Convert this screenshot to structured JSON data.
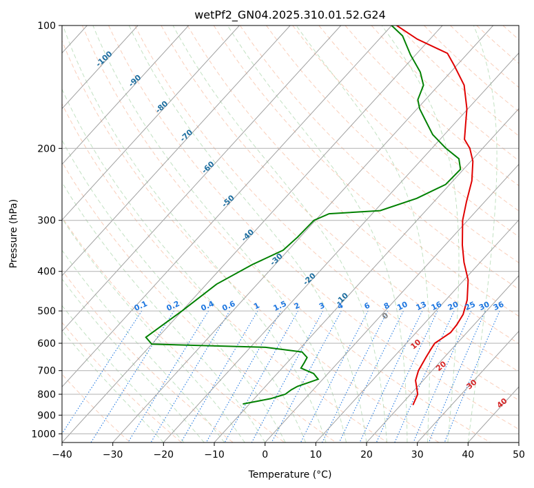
{
  "chart_data": {
    "type": "line",
    "title": "wetPf2_GN04.2025.310.01.52.G24",
    "xlabel": "Temperature (°C)",
    "ylabel": "Pressure (hPa)",
    "xlim": [
      -40,
      50
    ],
    "ylim": [
      1050,
      100
    ],
    "y_scale": "log",
    "grid": true,
    "x_ticks": [
      "−40",
      "−30",
      "−20",
      "−10",
      "0",
      "10",
      "20",
      "30",
      "40",
      "50"
    ],
    "y_ticks": [
      "100",
      "200",
      "300",
      "400",
      "500",
      "600",
      "700",
      "800",
      "900",
      "1000"
    ],
    "colors": {
      "temperature": "#e00000",
      "dewpoint": "#008000",
      "isotherm": "#a0a0a0",
      "dry_adiabat": "#f4a582",
      "moist_adiabat": "#8fc98f",
      "mixing_ratio": "#1f77e0",
      "isotherm_label": "#1f6fa0"
    },
    "isotherm_labels": [
      {
        "text": "-100",
        "p": 122
      },
      {
        "text": "-90",
        "p": 138
      },
      {
        "text": "-80",
        "p": 160
      },
      {
        "text": "-70",
        "p": 188
      },
      {
        "text": "-60",
        "p": 225
      },
      {
        "text": "-50",
        "p": 272
      },
      {
        "text": "-40",
        "p": 330
      },
      {
        "text": "-30",
        "p": 378
      },
      {
        "text": "-20",
        "p": 422
      },
      {
        "text": "-10",
        "p": 472
      }
    ],
    "mixing_ratio_labels": [
      "0.1",
      "0.2",
      "0.4",
      "0.6",
      "1",
      "1.5",
      "2",
      "3",
      "4",
      "6",
      "8",
      "10",
      "13",
      "16",
      "20",
      "25",
      "30",
      "36"
    ],
    "dry_adiabat_labels": [
      "0",
      "10",
      "20",
      "30",
      "40"
    ],
    "series": [
      {
        "name": "Temperature",
        "points": [
          [
            22.4,
            850
          ],
          [
            21.4,
            800
          ],
          [
            19.5,
            760
          ],
          [
            18.5,
            740
          ],
          [
            17.3,
            700
          ],
          [
            16.4,
            650
          ],
          [
            15.9,
            620
          ],
          [
            15.6,
            600
          ],
          [
            16.8,
            565
          ],
          [
            16.6,
            540
          ],
          [
            16.0,
            510
          ],
          [
            14.2,
            470
          ],
          [
            10.8,
            420
          ],
          [
            6.8,
            380
          ],
          [
            3.4,
            345
          ],
          [
            -1.0,
            300
          ],
          [
            -3.6,
            270
          ],
          [
            -6.3,
            240
          ],
          [
            -9.6,
            215
          ],
          [
            -12.5,
            200
          ],
          [
            -15.2,
            190
          ],
          [
            -17.6,
            175
          ],
          [
            -20.2,
            160
          ],
          [
            -25.0,
            140
          ],
          [
            -30.6,
            125
          ],
          [
            -34.0,
            117
          ],
          [
            -42.5,
            108
          ],
          [
            -49.0,
            100
          ]
        ]
      },
      {
        "name": "Dewpoint",
        "points": [
          [
            -11.3,
            845
          ],
          [
            -6.8,
            820
          ],
          [
            -4.7,
            800
          ],
          [
            -4.3,
            780
          ],
          [
            -3.7,
            765
          ],
          [
            -0.9,
            735
          ],
          [
            -2.8,
            712
          ],
          [
            -6.3,
            690
          ],
          [
            -6.6,
            670
          ],
          [
            -7.0,
            650
          ],
          [
            -9.0,
            630
          ],
          [
            -17.0,
            614
          ],
          [
            -40.0,
            603
          ],
          [
            -42.4,
            580
          ],
          [
            -40.0,
            500
          ],
          [
            -38.0,
            430
          ],
          [
            -34.5,
            385
          ],
          [
            -31.0,
            355
          ],
          [
            -30.5,
            330
          ],
          [
            -30.3,
            300
          ],
          [
            -28.5,
            289
          ],
          [
            -19.0,
            284
          ],
          [
            -14.0,
            265
          ],
          [
            -10.8,
            245
          ],
          [
            -10.6,
            225
          ],
          [
            -12.8,
            212
          ],
          [
            -17.2,
            200
          ],
          [
            -22.3,
            185
          ],
          [
            -26.5,
            170
          ],
          [
            -29.5,
            160
          ],
          [
            -31.5,
            152
          ],
          [
            -33.0,
            140
          ],
          [
            -36.0,
            130
          ],
          [
            -41.0,
            118
          ],
          [
            -46.0,
            106
          ],
          [
            -50.0,
            100
          ]
        ]
      }
    ]
  }
}
